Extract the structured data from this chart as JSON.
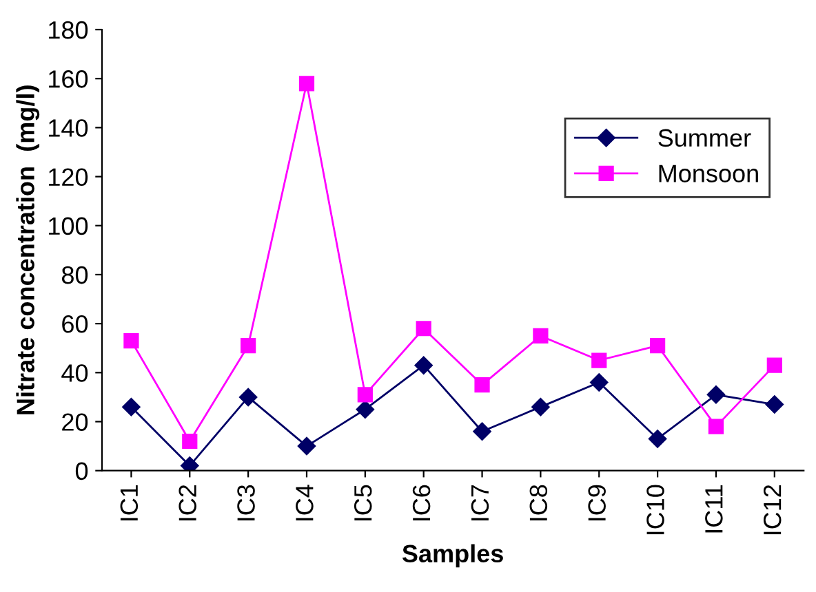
{
  "chart_data": {
    "type": "line",
    "xlabel": "Samples",
    "ylabel": "Nitrate concentration  (mg/l)",
    "categories": [
      "IC1",
      "IC2",
      "IC3",
      "IC4",
      "IC5",
      "IC6",
      "IC7",
      "IC8",
      "IC9",
      "IC10",
      "IC11",
      "IC12"
    ],
    "series": [
      {
        "name": "Summer",
        "color": "#000066",
        "marker": "diamond",
        "values": [
          26,
          2,
          30,
          10,
          25,
          43,
          16,
          26,
          36,
          13,
          31,
          27
        ]
      },
      {
        "name": "Monsoon",
        "color": "#ff00ff",
        "marker": "square",
        "values": [
          53,
          12,
          51,
          158,
          31,
          58,
          35,
          55,
          45,
          51,
          18,
          43
        ]
      }
    ],
    "ylim": [
      0,
      180
    ],
    "yticks": [
      0,
      20,
      40,
      60,
      80,
      100,
      120,
      140,
      160,
      180
    ],
    "grid": false,
    "legend": "top right",
    "line_style": "solid"
  }
}
